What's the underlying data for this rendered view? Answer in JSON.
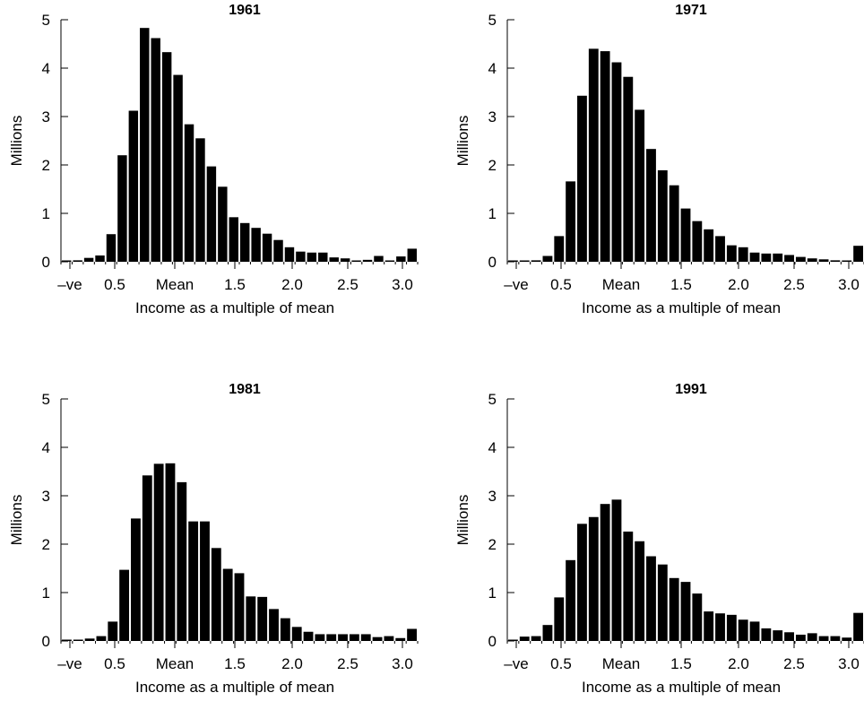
{
  "chart_data": [
    {
      "type": "bar",
      "title": "1961",
      "xlabel": "Income as a multiple of mean",
      "ylabel": "Millions",
      "ylim": [
        0,
        5
      ],
      "yticks": [
        "0",
        "1",
        "2",
        "3",
        "4",
        "5"
      ],
      "xticks": [
        "–ve",
        "0.5",
        "Mean",
        "1.5",
        "2.0",
        "2.5",
        "3.0"
      ],
      "values": [
        0.02,
        0.03,
        0.08,
        0.13,
        0.57,
        2.2,
        3.12,
        4.83,
        4.62,
        4.33,
        3.86,
        2.84,
        2.55,
        1.97,
        1.55,
        0.92,
        0.8,
        0.7,
        0.58,
        0.45,
        0.3,
        0.21,
        0.19,
        0.19,
        0.09,
        0.07,
        0.01,
        0.04,
        0.12,
        0.01,
        0.11,
        0.27
      ]
    },
    {
      "type": "bar",
      "title": "1971",
      "xlabel": "Income as a multiple of mean",
      "ylabel": "Millions",
      "ylim": [
        0,
        5
      ],
      "yticks": [
        "0",
        "1",
        "2",
        "3",
        "4",
        "5"
      ],
      "xticks": [
        "–ve",
        "0.5",
        "Mean",
        "1.5",
        "2.0",
        "2.5",
        "3.0"
      ],
      "values": [
        0.0,
        0.0,
        0.03,
        0.12,
        0.53,
        1.66,
        3.43,
        4.4,
        4.35,
        4.12,
        3.82,
        3.14,
        2.33,
        1.89,
        1.58,
        1.1,
        0.84,
        0.67,
        0.53,
        0.34,
        0.3,
        0.19,
        0.17,
        0.17,
        0.14,
        0.1,
        0.07,
        0.05,
        0.03,
        0.02,
        0.33
      ]
    },
    {
      "type": "bar",
      "title": "1981",
      "xlabel": "Income as a multiple of mean",
      "ylabel": "Millions",
      "ylim": [
        0,
        5
      ],
      "yticks": [
        "0",
        "1",
        "2",
        "3",
        "4",
        "5"
      ],
      "xticks": [
        "–ve",
        "0.5",
        "Mean",
        "1.5",
        "2.0",
        "2.5",
        "3.0"
      ],
      "values": [
        0.02,
        0.0,
        0.05,
        0.1,
        0.4,
        1.47,
        2.53,
        3.42,
        3.66,
        3.67,
        3.28,
        2.47,
        2.47,
        1.92,
        1.49,
        1.4,
        0.92,
        0.91,
        0.66,
        0.47,
        0.29,
        0.19,
        0.14,
        0.14,
        0.14,
        0.14,
        0.14,
        0.08,
        0.1,
        0.06,
        0.25
      ]
    },
    {
      "type": "bar",
      "title": "1991",
      "xlabel": "Income as a multiple of mean",
      "ylabel": "Millions",
      "ylim": [
        0,
        5
      ],
      "yticks": [
        "0",
        "1",
        "2",
        "3",
        "4",
        "5"
      ],
      "xticks": [
        "–ve",
        "0.5",
        "Mean",
        "1.5",
        "2.0",
        "2.5",
        "3.0"
      ],
      "values": [
        0.02,
        0.09,
        0.1,
        0.33,
        0.9,
        1.67,
        2.42,
        2.56,
        2.83,
        2.92,
        2.26,
        2.06,
        1.75,
        1.58,
        1.3,
        1.22,
        0.98,
        0.61,
        0.57,
        0.54,
        0.44,
        0.4,
        0.26,
        0.22,
        0.18,
        0.13,
        0.16,
        0.1,
        0.1,
        0.07,
        0.58
      ]
    }
  ]
}
